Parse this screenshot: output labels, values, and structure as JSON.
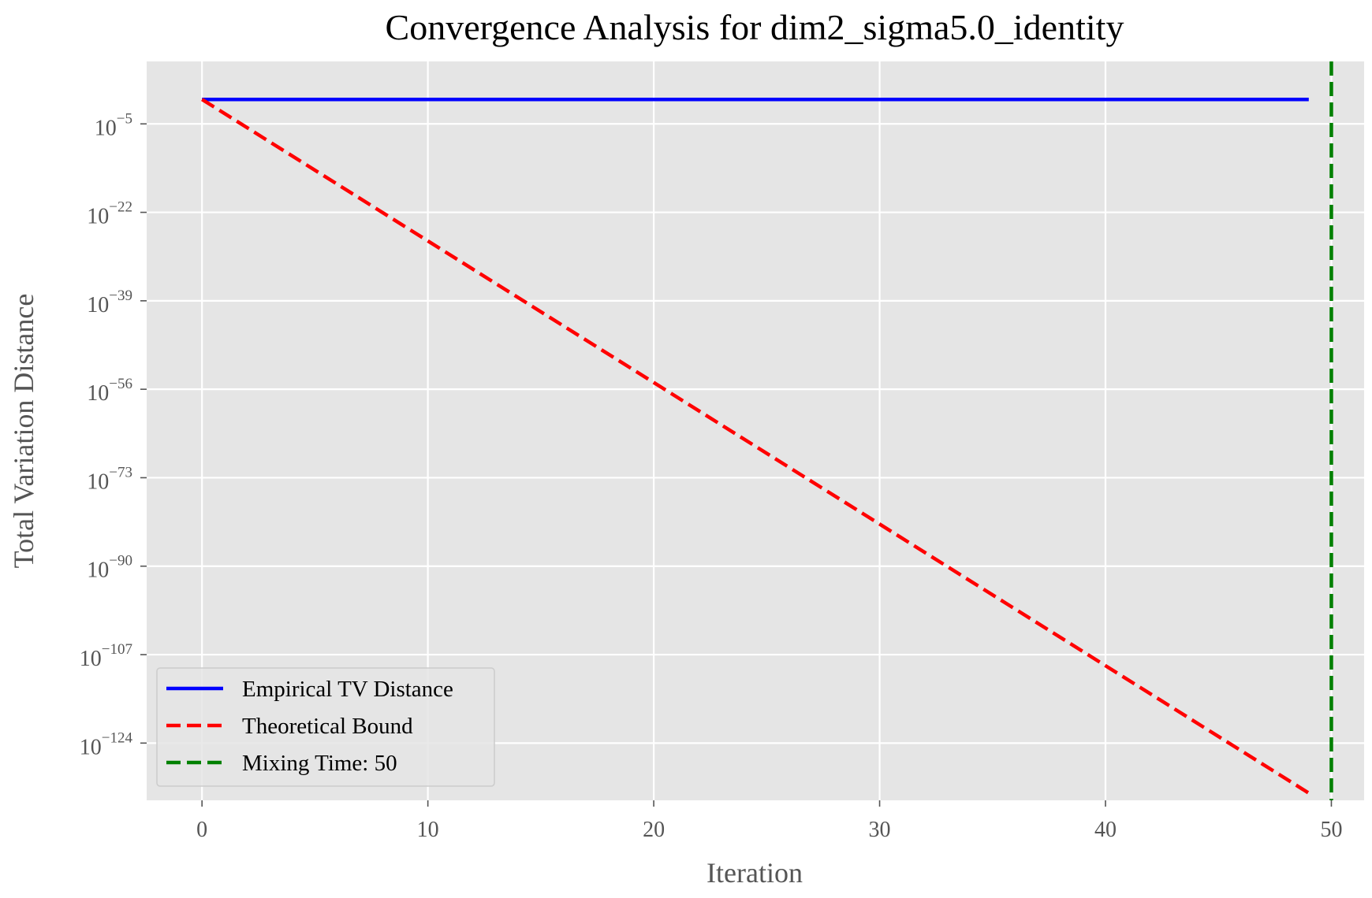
{
  "chart_data": {
    "type": "line",
    "title": "Convergence Analysis for dim2_sigma5.0_identity",
    "xlabel": "Iteration",
    "ylabel": "Total Variation Distance",
    "xlim": [
      -2.45,
      51.45
    ],
    "ylog": true,
    "ylim_log10": [
      -135,
      7
    ],
    "grid": true,
    "x_ticks": [
      0,
      10,
      20,
      30,
      40,
      50
    ],
    "y_ticks": [
      {
        "base": "10",
        "exp": "−5",
        "value_log10": -5
      },
      {
        "base": "10",
        "exp": "−22",
        "value_log10": -22
      },
      {
        "base": "10",
        "exp": "−39",
        "value_log10": -39
      },
      {
        "base": "10",
        "exp": "−56",
        "value_log10": -56
      },
      {
        "base": "10",
        "exp": "−73",
        "value_log10": -73
      },
      {
        "base": "10",
        "exp": "−90",
        "value_log10": -90
      },
      {
        "base": "10",
        "exp": "−107",
        "value_log10": -107
      },
      {
        "base": "10",
        "exp": "−124",
        "value_log10": -124
      }
    ],
    "series": [
      {
        "name": "Empirical TV Distance",
        "color": "#0000ff",
        "style": "solid",
        "x": [
          0,
          49
        ],
        "y_log10": [
          -0.3,
          -0.3
        ]
      },
      {
        "name": "Theoretical Bound",
        "color": "#ff0000",
        "style": "dashed",
        "x": [
          0,
          49
        ],
        "y_log10": [
          -0.3,
          -133.6
        ]
      }
    ],
    "vlines": [
      {
        "name": "Mixing Time: 50",
        "x": 50,
        "color": "#008000",
        "style": "dashed"
      }
    ],
    "legend": {
      "placement": "lower-left",
      "entries": [
        {
          "label": "Empirical TV Distance",
          "color": "#0000ff",
          "style": "solid"
        },
        {
          "label": "Theoretical Bound",
          "color": "#ff0000",
          "style": "dashed"
        },
        {
          "label": "Mixing Time: 50",
          "color": "#008000",
          "style": "dashed"
        }
      ]
    },
    "colors": {
      "plot_background": "#e5e5e5",
      "grid": "#ffffff"
    }
  }
}
